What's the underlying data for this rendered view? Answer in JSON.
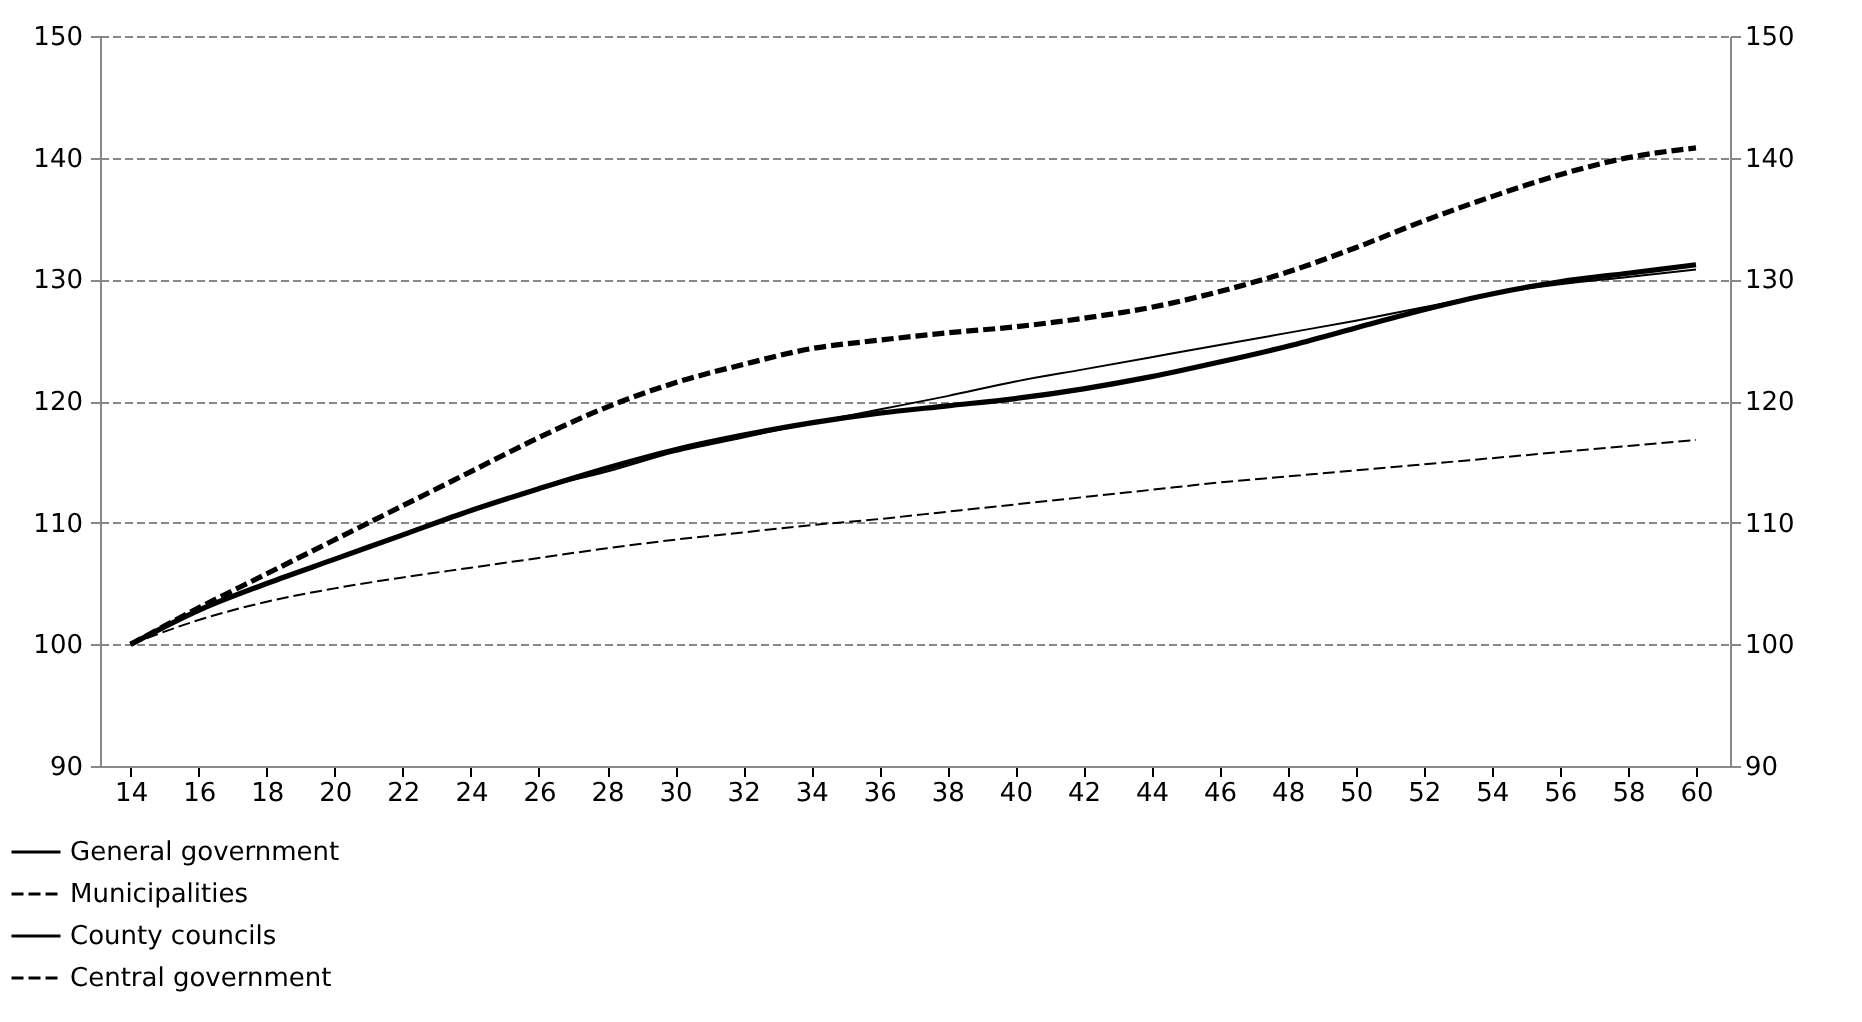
{
  "chart_data": {
    "type": "line",
    "x": [
      14,
      16,
      18,
      20,
      22,
      24,
      26,
      28,
      30,
      32,
      34,
      36,
      38,
      40,
      42,
      44,
      46,
      48,
      50,
      52,
      54,
      56,
      58,
      60
    ],
    "series": [
      {
        "name": "General government",
        "color": "#000000",
        "line_style": "solid",
        "values": [
          100,
          102.8,
          105,
          107,
          109,
          111,
          112.8,
          114.5,
          116,
          117.2,
          118.2,
          119,
          119.6,
          120.2,
          121,
          122,
          123.2,
          124.5,
          126,
          127.5,
          128.8,
          129.8,
          130.5,
          131.2
        ]
      },
      {
        "name": "Municipalities",
        "color": "#000000",
        "line_style": "dashed",
        "values": [
          100,
          103,
          105.8,
          108.6,
          111.4,
          114.2,
          117,
          119.5,
          121.5,
          123,
          124.3,
          125,
          125.6,
          126.1,
          126.8,
          127.7,
          129,
          130.6,
          132.6,
          134.8,
          136.8,
          138.6,
          140,
          140.8
        ]
      },
      {
        "name": "County councils",
        "color": "#000000",
        "line_style": "solid",
        "values": [
          100,
          102.8,
          105,
          107,
          109,
          111,
          112.8,
          114.2,
          115.8,
          117,
          118.2,
          119.3,
          120.4,
          121.6,
          122.6,
          123.6,
          124.6,
          125.6,
          126.6,
          127.7,
          128.8,
          129.6,
          130.2,
          130.8
        ]
      },
      {
        "name": "Central government",
        "color": "#000000",
        "line_style": "dashed",
        "values": [
          100,
          102,
          103.5,
          104.6,
          105.5,
          106.3,
          107.1,
          107.9,
          108.6,
          109.2,
          109.8,
          110.3,
          110.9,
          111.5,
          112.1,
          112.7,
          113.3,
          113.8,
          114.3,
          114.8,
          115.3,
          115.8,
          116.3,
          116.8
        ]
      }
    ],
    "xlim": [
      13.1,
      61
    ],
    "xticks": [
      14,
      16,
      18,
      20,
      22,
      24,
      26,
      28,
      30,
      32,
      34,
      36,
      38,
      40,
      42,
      44,
      46,
      48,
      50,
      52,
      54,
      56,
      58,
      60
    ],
    "ylim": [
      90,
      150
    ],
    "yticks": [
      90,
      100,
      110,
      120,
      130,
      140,
      150
    ],
    "y2lim": [
      90,
      150
    ],
    "y2ticks": [
      90,
      100,
      110,
      120,
      130,
      140,
      150
    ],
    "grid": "y",
    "legend": "bottom left",
    "marker": "none"
  }
}
